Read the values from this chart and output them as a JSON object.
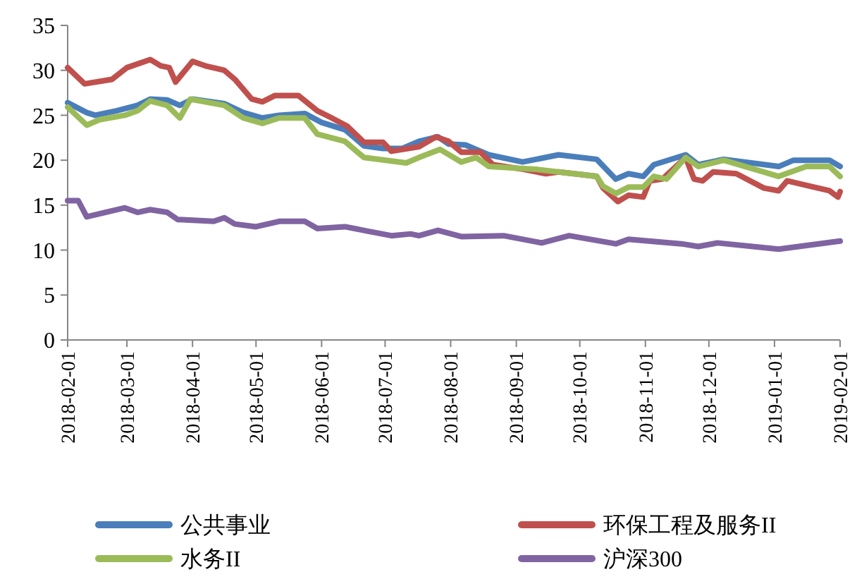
{
  "chart_data": {
    "type": "line",
    "xlim": [
      "2018-02-01",
      "2019-02-01"
    ],
    "xticks": [
      "2018-02-01",
      "2018-03-01",
      "2018-04-01",
      "2018-05-01",
      "2018-06-01",
      "2018-07-01",
      "2018-08-01",
      "2018-09-01",
      "2018-10-01",
      "2018-11-01",
      "2018-12-01",
      "2019-01-01",
      "2019-02-01"
    ],
    "ylim": [
      0,
      35
    ],
    "yticks": [
      0,
      5,
      10,
      15,
      20,
      25,
      30,
      35
    ],
    "legend": "bottom",
    "grid": false,
    "series": [
      {
        "name": "公共事业",
        "color": "#4a7ebb",
        "x": [
          "2018-02-01",
          "2018-02-10",
          "2018-02-14",
          "2018-02-24",
          "2018-03-06",
          "2018-03-12",
          "2018-03-20",
          "2018-03-26",
          "2018-04-01",
          "2018-04-16",
          "2018-04-25",
          "2018-05-04",
          "2018-05-12",
          "2018-05-24",
          "2018-06-01",
          "2018-06-12",
          "2018-06-21",
          "2018-06-30",
          "2018-07-09",
          "2018-07-17",
          "2018-07-26",
          "2018-07-31",
          "2018-08-08",
          "2018-08-19",
          "2018-09-04",
          "2018-09-21",
          "2018-10-09",
          "2018-10-18",
          "2018-10-24",
          "2018-10-31",
          "2018-11-05",
          "2018-11-20",
          "2018-11-26",
          "2018-12-08",
          "2019-01-03",
          "2019-01-10",
          "2019-01-27",
          "2019-02-01"
        ],
        "values": [
          26.4,
          25.3,
          25.0,
          25.5,
          26.1,
          26.8,
          26.7,
          26.1,
          26.8,
          26.3,
          25.3,
          24.7,
          25.0,
          25.2,
          24.2,
          23.4,
          21.6,
          21.3,
          21.3,
          22.1,
          22.6,
          21.8,
          21.7,
          20.6,
          19.8,
          20.6,
          20.1,
          17.9,
          18.5,
          18.2,
          19.5,
          20.6,
          19.5,
          20.1,
          19.3,
          20.0,
          20.0,
          19.3
        ]
      },
      {
        "name": "环保工程及服务II",
        "color": "#c0504d",
        "x": [
          "2018-02-01",
          "2018-02-09",
          "2018-02-22",
          "2018-03-01",
          "2018-03-12",
          "2018-03-17",
          "2018-03-21",
          "2018-03-24",
          "2018-04-01",
          "2018-04-07",
          "2018-04-16",
          "2018-04-21",
          "2018-04-29",
          "2018-05-04",
          "2018-05-10",
          "2018-05-21",
          "2018-05-30",
          "2018-06-05",
          "2018-06-13",
          "2018-06-21",
          "2018-06-30",
          "2018-07-04",
          "2018-07-17",
          "2018-07-25",
          "2018-07-31",
          "2018-08-06",
          "2018-08-15",
          "2018-08-21",
          "2018-09-04",
          "2018-09-15",
          "2018-09-21",
          "2018-10-09",
          "2018-10-12",
          "2018-10-19",
          "2018-10-24",
          "2018-10-31",
          "2018-11-03",
          "2018-11-09",
          "2018-11-20",
          "2018-11-24",
          "2018-11-28",
          "2018-12-03",
          "2018-12-14",
          "2018-12-27",
          "2019-01-03",
          "2019-01-07",
          "2019-01-18",
          "2019-01-27",
          "2019-01-31",
          "2019-02-01"
        ],
        "values": [
          30.3,
          28.5,
          29.0,
          30.3,
          31.2,
          30.5,
          30.3,
          28.7,
          31.0,
          30.5,
          30.0,
          29.0,
          26.8,
          26.5,
          27.2,
          27.2,
          25.5,
          24.8,
          23.8,
          22.0,
          22.0,
          21.0,
          21.5,
          22.6,
          22.1,
          20.9,
          20.9,
          19.5,
          19.0,
          18.5,
          18.7,
          18.2,
          16.9,
          15.4,
          16.1,
          15.9,
          17.7,
          17.9,
          20.3,
          17.9,
          17.7,
          18.7,
          18.5,
          16.9,
          16.6,
          17.7,
          17.1,
          16.6,
          15.9,
          16.5
        ]
      },
      {
        "name": "水务II",
        "color": "#9bbb59",
        "x": [
          "2018-02-01",
          "2018-02-10",
          "2018-02-16",
          "2018-02-28",
          "2018-03-06",
          "2018-03-12",
          "2018-03-20",
          "2018-03-26",
          "2018-03-31",
          "2018-04-16",
          "2018-04-25",
          "2018-05-04",
          "2018-05-12",
          "2018-05-24",
          "2018-05-30",
          "2018-06-12",
          "2018-06-21",
          "2018-07-11",
          "2018-07-17",
          "2018-07-27",
          "2018-08-06",
          "2018-08-13",
          "2018-08-19",
          "2018-09-10",
          "2018-10-09",
          "2018-10-12",
          "2018-10-18",
          "2018-10-24",
          "2018-10-31",
          "2018-11-05",
          "2018-11-11",
          "2018-11-20",
          "2018-11-26",
          "2018-12-08",
          "2019-01-03",
          "2019-01-16",
          "2019-01-27",
          "2019-02-01"
        ],
        "values": [
          25.9,
          23.9,
          24.5,
          25.0,
          25.5,
          26.6,
          26.1,
          24.7,
          26.8,
          26.1,
          24.7,
          24.1,
          24.7,
          24.7,
          22.9,
          22.1,
          20.3,
          19.7,
          20.3,
          21.2,
          19.8,
          20.3,
          19.3,
          19.0,
          18.2,
          17.1,
          16.3,
          17.0,
          17.0,
          18.2,
          17.9,
          20.3,
          19.3,
          20.0,
          18.2,
          19.3,
          19.3,
          18.2
        ]
      },
      {
        "name": "沪深300",
        "color": "#8064a2",
        "x": [
          "2018-02-01",
          "2018-02-06",
          "2018-02-10",
          "2018-02-28",
          "2018-03-06",
          "2018-03-12",
          "2018-03-20",
          "2018-03-25",
          "2018-04-11",
          "2018-04-16",
          "2018-04-21",
          "2018-05-01",
          "2018-05-12",
          "2018-05-24",
          "2018-05-30",
          "2018-06-12",
          "2018-06-23",
          "2018-07-04",
          "2018-07-13",
          "2018-07-17",
          "2018-07-26",
          "2018-08-06",
          "2018-08-26",
          "2018-09-13",
          "2018-09-26",
          "2018-10-18",
          "2018-10-24",
          "2018-11-18",
          "2018-11-26",
          "2018-12-05",
          "2019-01-03",
          "2019-02-01"
        ],
        "values": [
          15.5,
          15.5,
          13.7,
          14.7,
          14.2,
          14.5,
          14.2,
          13.4,
          13.2,
          13.6,
          12.9,
          12.6,
          13.2,
          13.2,
          12.4,
          12.6,
          12.1,
          11.6,
          11.8,
          11.6,
          12.2,
          11.5,
          11.6,
          10.8,
          11.6,
          10.7,
          11.2,
          10.7,
          10.4,
          10.8,
          10.1,
          11.0
        ]
      }
    ]
  }
}
